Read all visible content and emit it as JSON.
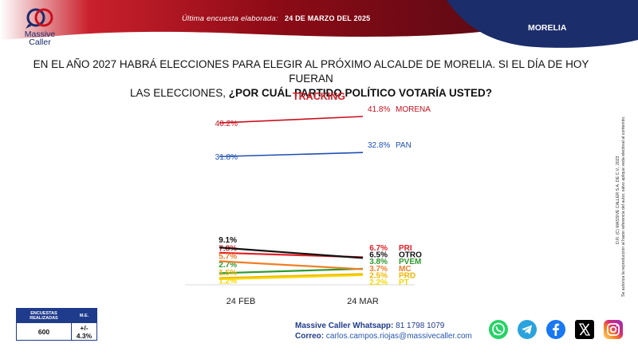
{
  "header": {
    "survey_label": "Última encuesta elaborada:",
    "survey_date": "24 DE MARZO DEL 2025",
    "region": "MORELIA",
    "colors": {
      "red": "#a80f1c",
      "navy": "#1b2d6b"
    }
  },
  "logo": {
    "line1": "Massive",
    "line2": "Caller"
  },
  "question": {
    "line1": "EN EL AÑO 2027 HABRÁ ELECCIONES PARA ELEGIR AL PRÓXIMO ALCALDE DE MORELIA. SI EL DÍA DE HOY FUERAN",
    "line2_prefix": "LAS ELECCIONES, ",
    "line2_bold": "¿POR CUÁL PARTIDO POLÍTICO VOTARÍA USTED?"
  },
  "chart_data": {
    "type": "line",
    "title": "TRACKING",
    "categories": [
      "24 FEB",
      "24 MAR"
    ],
    "series": [
      {
        "name": "MORENA",
        "values": [
          40.2,
          41.8
        ],
        "color": "#c8101e",
        "start_label": "40.2%",
        "end_label": "41.8%"
      },
      {
        "name": "PAN",
        "values": [
          31.8,
          32.8
        ],
        "color": "#1f4fb0",
        "start_label": "31.8%",
        "end_label": "32.8%"
      },
      {
        "name": "PRI",
        "values": [
          7.8,
          6.7
        ],
        "color": "#e41e26",
        "start_label": "7.8%",
        "end_label": "6.7%"
      },
      {
        "name": "OTRO",
        "values": [
          9.1,
          6.5
        ],
        "color": "#111111",
        "start_label": "9.1%",
        "end_label": "6.5%"
      },
      {
        "name": "PVEM",
        "values": [
          2.7,
          3.8
        ],
        "color": "#2e9a2e",
        "start_label": "2.7%",
        "end_label": "3.8%"
      },
      {
        "name": "MC",
        "values": [
          5.7,
          3.7
        ],
        "color": "#f07e26",
        "start_label": "5.7%",
        "end_label": "3.7%"
      },
      {
        "name": "PRD",
        "values": [
          1.5,
          2.5
        ],
        "color": "#f2b400",
        "start_label": "1.5%",
        "end_label": "2.5%"
      },
      {
        "name": "PT",
        "values": [
          1.2,
          2.2
        ],
        "color": "#f5d800",
        "start_label": "1.2%",
        "end_label": "2.2%"
      }
    ],
    "grid": false,
    "legend": "right-of-lines"
  },
  "side_note": {
    "line1": "D.R. (C) MASSIVE CALLER S.A. DE C.V., 2023",
    "line2": "Se autoriza la reproducción al hacer referencia del autor, salvo aplique veda electoral al contenido."
  },
  "stats": {
    "headers": [
      "ENCUESTAS REALIZADAS",
      "M.E."
    ],
    "values": [
      "600",
      "+/- 4.3%"
    ]
  },
  "contact": {
    "whatsapp_label": "Massive Caller Whatsapp:",
    "whatsapp_value": "81 1798 1079",
    "email_label": "Correo:",
    "email_value": "carlos.campos.riojas@massivecaller.com"
  },
  "social": {
    "icons": [
      "whatsapp-icon",
      "telegram-icon",
      "facebook-icon",
      "x-icon",
      "instagram-icon"
    ]
  }
}
